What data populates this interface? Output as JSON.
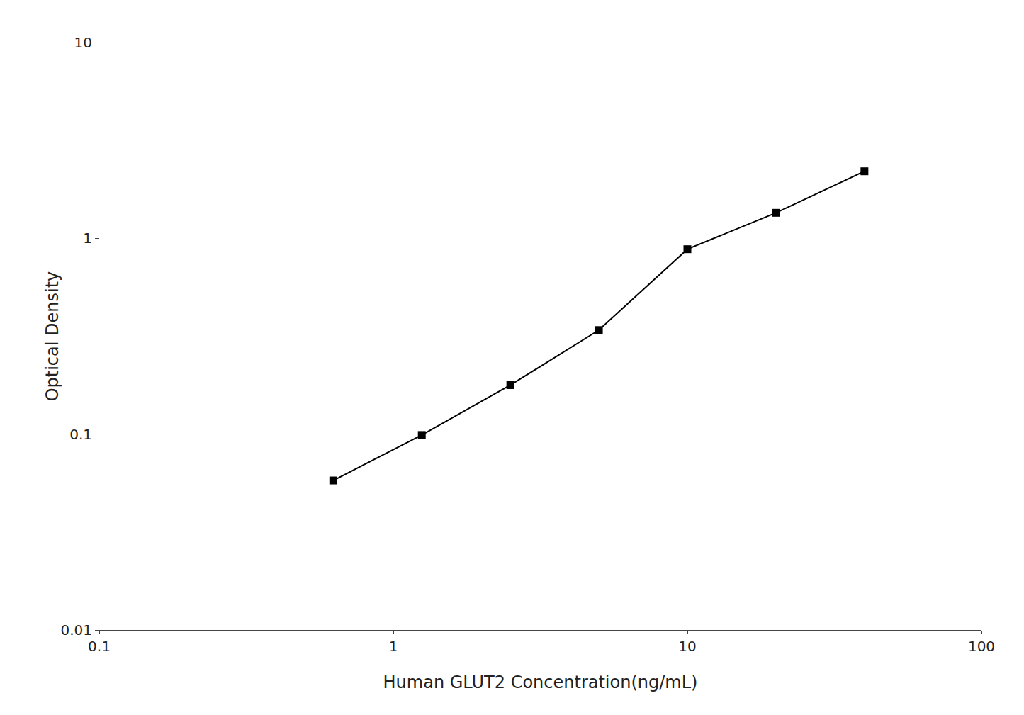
{
  "chart_data": {
    "type": "line",
    "x": [
      0.625,
      1.25,
      2.5,
      5.0,
      10.0,
      20.0,
      40.0
    ],
    "values": [
      0.058,
      0.099,
      0.178,
      0.34,
      0.88,
      1.35,
      2.2
    ],
    "xlabel": "Human GLUT2 Concentration(ng/mL)",
    "ylabel": "Optical Density",
    "xlim": [
      0.1,
      100
    ],
    "ylim": [
      0.01,
      10
    ],
    "xticks": [
      0.1,
      1,
      10,
      100
    ],
    "yticks": [
      0.01,
      0.1,
      1,
      10
    ],
    "log": true,
    "grid": false,
    "color": "#000000",
    "marker": "square",
    "line_style": "solid"
  }
}
